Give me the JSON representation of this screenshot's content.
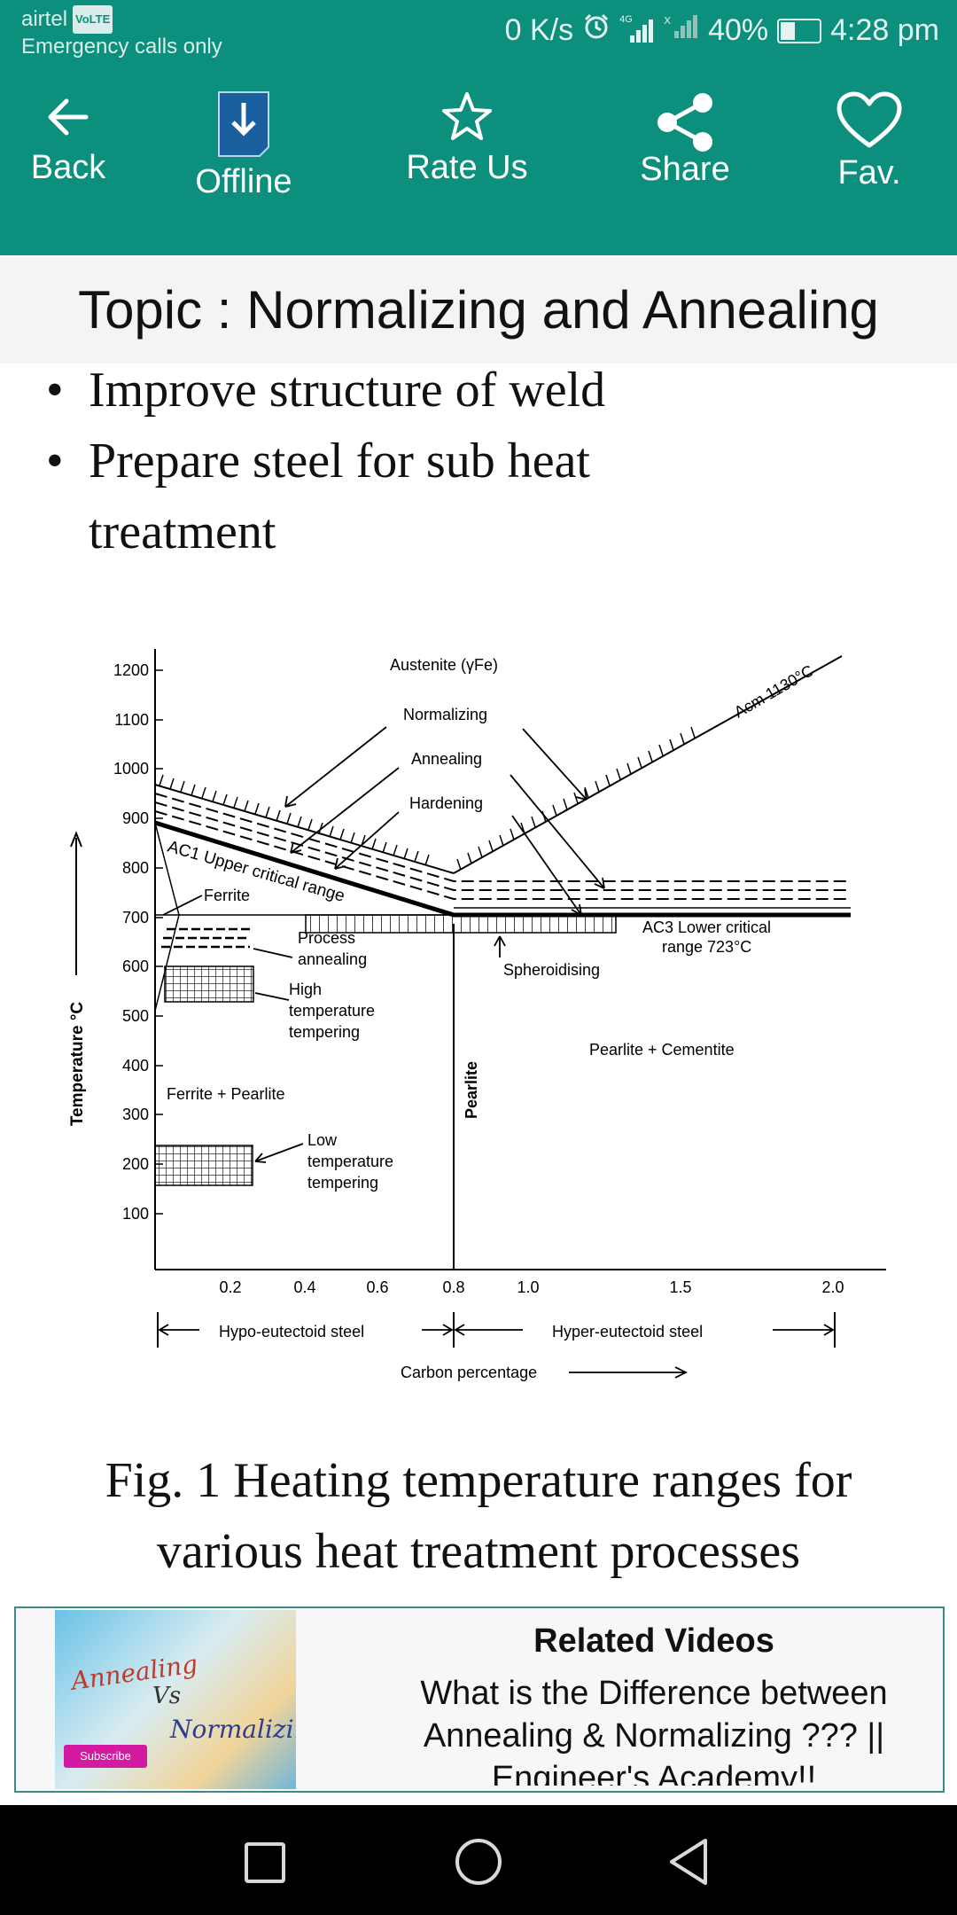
{
  "status_bar": {
    "carrier": "airtel",
    "volte": "VoLTE",
    "emergency": "Emergency calls only",
    "speed": "0 K/s",
    "network": "4G",
    "battery": "40%",
    "battery_level": 0.4,
    "time": "4:28 pm"
  },
  "toolbar": {
    "back": "Back",
    "offline": "Offline",
    "rate": "Rate Us",
    "share": "Share",
    "fav": "Fav."
  },
  "topic": "Topic : Normalizing and Annealing",
  "bullets": [
    "Improve structure of weld",
    "Prepare steel for sub heat treatment"
  ],
  "diagram": {
    "ylabel": "Temperature °C",
    "yticks": [
      "1200",
      "1100",
      "1000",
      "900",
      "800",
      "700",
      "600",
      "500",
      "400",
      "300",
      "200",
      "100"
    ],
    "xticks": [
      "0.2",
      "0.4",
      "0.6",
      "0.8",
      "1.0",
      "1.5",
      "2.0"
    ],
    "austenite": "Austenite (γFe)",
    "normalizing": "Normalizing",
    "annealing": "Annealing",
    "hardening": "Hardening",
    "acm_label": "Acm 1130°C",
    "ac1_label": "AC1 Upper critical range",
    "ferrite": "Ferrite",
    "ac3_line1": "AC3 Lower critical",
    "ac3_line2": "range 723°C",
    "process1": "Process",
    "process2": "annealing",
    "high1": "High",
    "high2": "temperature",
    "high3": "tempering",
    "spheroidising": "Spheroidising",
    "pearlite_cementite": "Pearlite + Cementite",
    "ferrite_pearlite": "Ferrite + Pearlite",
    "pearlite": "Pearlite",
    "low1": "Low",
    "low2": "temperature",
    "low3": "tempering",
    "hypo": "Hypo-eutectoid steel",
    "hyper": "Hyper-eutectoid steel",
    "carbon": "Carbon percentage"
  },
  "caption": {
    "line1": "Fig. 1 Heating temperature ranges for",
    "line2": "various heat treatment processes"
  },
  "related": {
    "title": "Related Videos",
    "text": "What is the Difference between Annealing & Normalizing ??? || Engineer's Academy!!",
    "thumb_title1": "Annealing",
    "thumb_title2": "Vs",
    "thumb_title3": "Normalizing",
    "subscribe": "Subscribe"
  }
}
